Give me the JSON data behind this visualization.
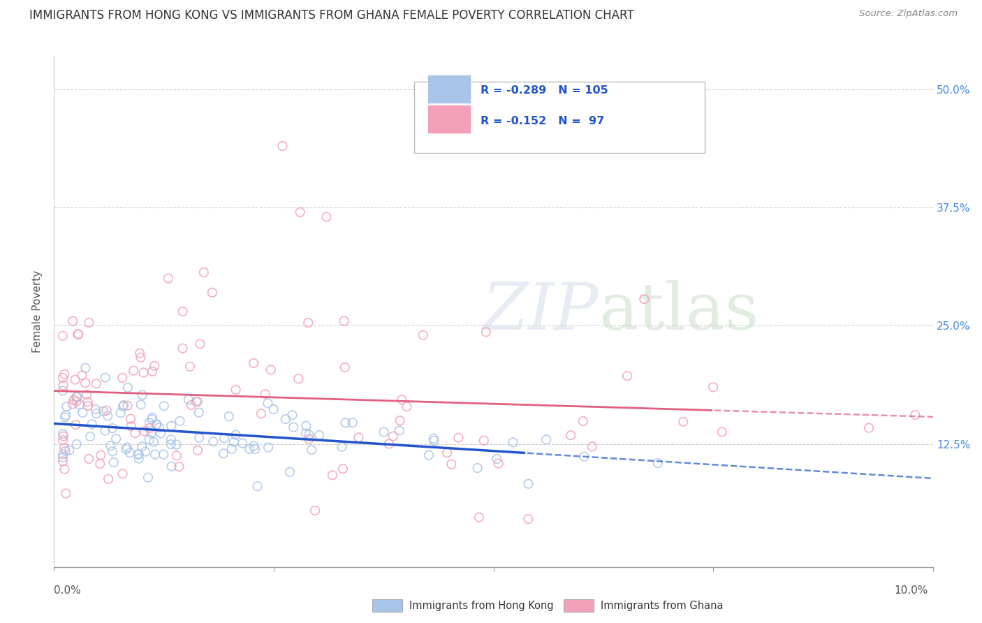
{
  "title": "IMMIGRANTS FROM HONG KONG VS IMMIGRANTS FROM GHANA FEMALE POVERTY CORRELATION CHART",
  "source": "Source: ZipAtlas.com",
  "ylabel": "Female Poverty",
  "ytick_labels": [
    "12.5%",
    "25.0%",
    "37.5%",
    "50.0%"
  ],
  "ytick_values": [
    0.125,
    0.25,
    0.375,
    0.5
  ],
  "xlim": [
    0.0,
    0.1
  ],
  "ylim": [
    -0.005,
    0.535
  ],
  "hk_color": "#a8c4e8",
  "ghana_color": "#f4a0b8",
  "hk_line_color": "#2255cc",
  "ghana_line_color": "#e06080",
  "hk_R": -0.289,
  "hk_N": 105,
  "ghana_R": -0.152,
  "ghana_N": 97,
  "background_color": "#ffffff",
  "grid_color": "#d0d0d0",
  "legend_label_hk": "Immigrants from Hong Kong",
  "legend_label_ghana": "Immigrants from Ghana",
  "title_fontsize": 12,
  "tick_fontsize": 11,
  "right_tick_color": "#4488dd"
}
